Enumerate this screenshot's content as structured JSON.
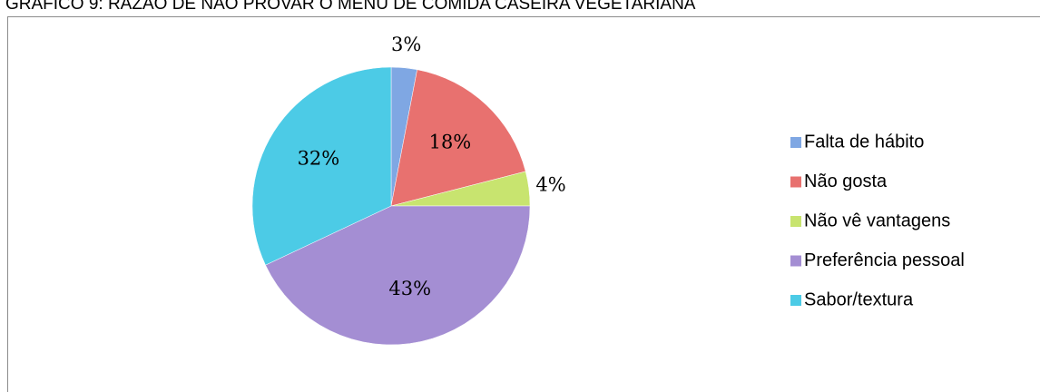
{
  "chart_data": {
    "type": "pie",
    "title": "GRÁFICO 9: RAZÃO DE NÃO PROVAR O MENU DE COMIDA CASEIRA VEGETARIANA",
    "categories": [
      "Falta de hábito",
      "Não gosta",
      "Não vê vantagens",
      "Preferência pessoal",
      "Sabor/textura"
    ],
    "values": [
      3,
      18,
      4,
      43,
      32
    ],
    "value_labels": [
      "3%",
      "18%",
      "4%",
      "43%",
      "32%"
    ],
    "colors": [
      "#7fa7e3",
      "#e8716f",
      "#c8e46f",
      "#a48ed3",
      "#4ccbe6"
    ],
    "legend": "right"
  }
}
